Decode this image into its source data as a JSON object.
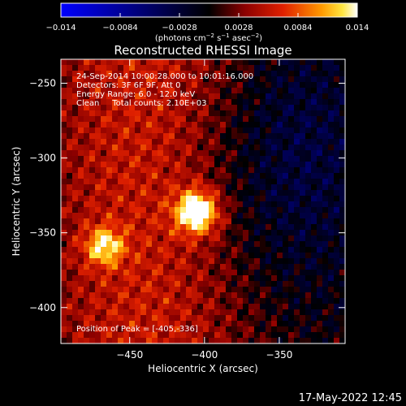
{
  "chart_data": {
    "type": "heatmap",
    "title": "Reconstructed RHESSI Image",
    "xlabel": "Heliocentric X (arcsec)",
    "ylabel": "Heliocentric Y (arcsec)",
    "xlim": [
      -496,
      -306
    ],
    "ylim": [
      -424,
      -234
    ],
    "x_ticks": [
      -450,
      -400,
      -350
    ],
    "y_ticks": [
      -250,
      -300,
      -350,
      -400
    ],
    "annotations": [
      "24-Sep-2014 10:00:28.000 to 10:01:16.000",
      "Detectors: 3F 6F 9F, Att 0",
      "Energy Range: 6.0 - 12.0 keV",
      "Clean     Total counts: 2.10E+03"
    ],
    "peak_label": "Position of Peak = [-405,-336]",
    "peak_position": [
      -405,
      -336
    ],
    "colorbar": {
      "range": [
        -0.014,
        0.014
      ],
      "tick_labels": [
        "-0.014",
        "-0.0084",
        "-0.0028",
        "0.0028",
        "0.0084",
        "0.014"
      ],
      "unit_label": "(photons cm-2 s-1 asec-2)",
      "colormap": "blue-black-red-yellow-white"
    },
    "sources": [
      {
        "x": -405,
        "y": -336,
        "peak": 0.014
      },
      {
        "x": -467,
        "y": -359,
        "peak": 0.0092
      }
    ],
    "negative_region": {
      "x": -345,
      "y": -300
    }
  },
  "footer": {
    "timestamp": "17-May-2022 12:45"
  }
}
